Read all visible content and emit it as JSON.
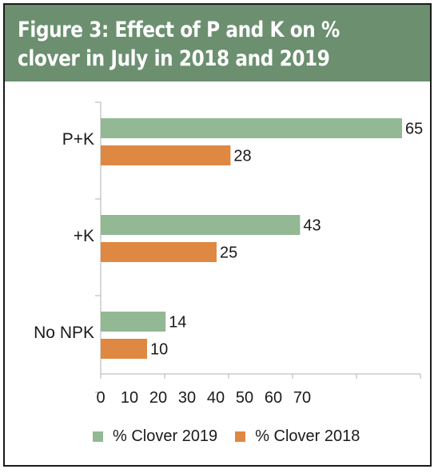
{
  "title": "Figure 3: Effect of P and K on % clover in July in 2018 and 2019",
  "colors": {
    "header": "#6b8f6f",
    "series_2019": "#93b894",
    "series_2018": "#de8842"
  },
  "chart_data": {
    "type": "bar",
    "orientation": "horizontal",
    "categories": [
      "P+K",
      "+K",
      "No NPK"
    ],
    "series": [
      {
        "name": "% Clover 2019",
        "values": [
          65,
          43,
          14
        ]
      },
      {
        "name": "% Clover 2018",
        "values": [
          28,
          25,
          10
        ]
      }
    ],
    "x_ticks": [
      "0",
      "10",
      "20",
      "30",
      "40",
      "50",
      "60",
      "70"
    ],
    "xlim": [
      0,
      70
    ],
    "grid": false,
    "legend_position": "bottom"
  }
}
